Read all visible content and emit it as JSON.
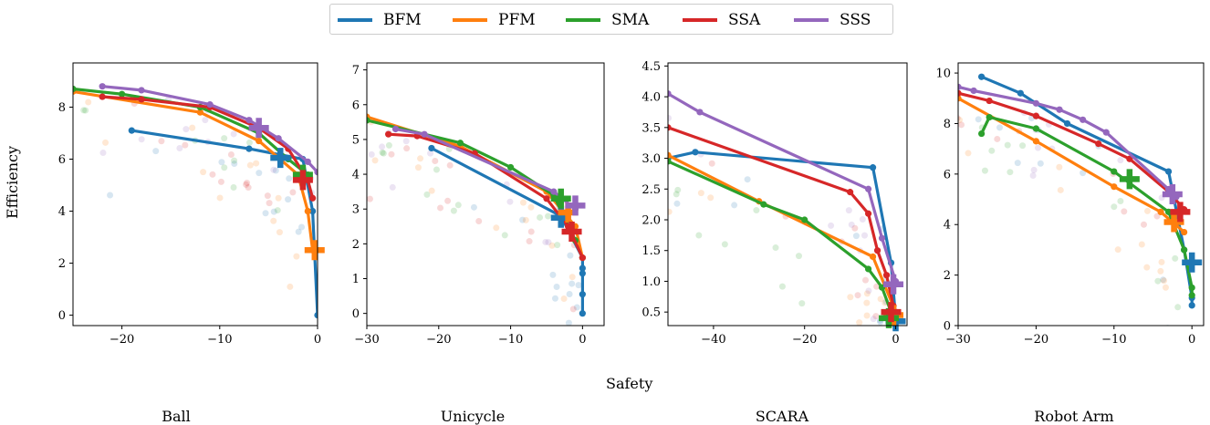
{
  "legend": [
    {
      "name": "BFM",
      "color": "#1f77b4"
    },
    {
      "name": "PFM",
      "color": "#ff7f0e"
    },
    {
      "name": "SMA",
      "color": "#2ca02c"
    },
    {
      "name": "SSA",
      "color": "#d62728"
    },
    {
      "name": "SSS",
      "color": "#9467bd"
    }
  ],
  "ylabel": "Efficiency",
  "xlabel": "Safety",
  "chart_data": [
    {
      "type": "line",
      "title": "Ball",
      "xlim": [
        -25,
        0
      ],
      "ylim": [
        -0.4,
        9.7
      ],
      "xticks": [
        -20,
        -10,
        0
      ],
      "yticks": [
        0,
        2,
        4,
        6,
        8
      ],
      "series": [
        {
          "name": "BFM",
          "x": [
            -19,
            -7,
            -1.5,
            -0.5,
            0
          ],
          "y": [
            7.1,
            6.4,
            6.0,
            4.0,
            0.0
          ],
          "best": [
            -3.8,
            6.05
          ]
        },
        {
          "name": "PFM",
          "x": [
            -25,
            -12,
            -6,
            -2,
            -1,
            -0.5
          ],
          "y": [
            8.6,
            7.8,
            6.7,
            5.4,
            4.0,
            2.5
          ],
          "best": [
            -0.3,
            2.5
          ]
        },
        {
          "name": "SMA",
          "x": [
            -25,
            -20,
            -12,
            -6,
            -3,
            -1
          ],
          "y": [
            8.7,
            8.5,
            8.0,
            7.0,
            6.0,
            5.4
          ],
          "best": [
            -1.5,
            5.4
          ]
        },
        {
          "name": "SSA",
          "x": [
            -22,
            -18,
            -11,
            -6,
            -3,
            -1,
            -0.5
          ],
          "y": [
            8.4,
            8.3,
            8.0,
            7.2,
            6.4,
            5.2,
            4.5
          ],
          "best": [
            -1.5,
            5.2
          ]
        },
        {
          "name": "SSS",
          "x": [
            -22,
            -18,
            -11,
            -7,
            -4,
            -1,
            0
          ],
          "y": [
            8.8,
            8.65,
            8.1,
            7.5,
            6.8,
            5.9,
            5.5
          ],
          "best": [
            -6,
            7.2
          ]
        }
      ]
    },
    {
      "type": "line",
      "title": "Unicycle",
      "xlim": [
        -30,
        3
      ],
      "ylim": [
        -0.35,
        7.2
      ],
      "xticks": [
        -30,
        -20,
        -10,
        0
      ],
      "yticks": [
        0,
        1,
        2,
        3,
        4,
        5,
        6,
        7
      ],
      "series": [
        {
          "name": "BFM",
          "x": [
            -21,
            -3,
            0,
            0,
            0,
            0,
            0
          ],
          "y": [
            4.75,
            2.8,
            1.6,
            1.3,
            1.15,
            0.55,
            0.0
          ],
          "best": [
            -3,
            2.75
          ]
        },
        {
          "name": "PFM",
          "x": [
            -30,
            -17,
            -5,
            -1,
            0
          ],
          "y": [
            5.65,
            4.8,
            3.5,
            2.5,
            1.6
          ],
          "best": [
            -2,
            2.9
          ]
        },
        {
          "name": "SMA",
          "x": [
            -30,
            -17,
            -10,
            -4,
            -1
          ],
          "y": [
            5.55,
            4.9,
            4.2,
            3.4,
            2.1
          ],
          "best": [
            -3,
            3.3
          ]
        },
        {
          "name": "SSA",
          "x": [
            -27,
            -23,
            -15,
            -5,
            -2,
            0
          ],
          "y": [
            5.15,
            5.1,
            4.6,
            3.3,
            2.5,
            1.6
          ],
          "best": [
            -1.5,
            2.35
          ]
        },
        {
          "name": "SSS",
          "x": [
            -26,
            -22,
            -4,
            -1
          ],
          "y": [
            5.3,
            5.15,
            3.5,
            3.0
          ],
          "best": [
            -1,
            3.1
          ]
        }
      ]
    },
    {
      "type": "line",
      "title": "SCARA",
      "xlim": [
        -50,
        2.5
      ],
      "ylim": [
        0.28,
        4.55
      ],
      "xticks": [
        -40,
        -20,
        0
      ],
      "yticks": [
        0.5,
        1.0,
        1.5,
        2.0,
        2.5,
        3.0,
        3.5,
        4.0,
        4.5
      ],
      "series": [
        {
          "name": "BFM",
          "x": [
            -50,
            -44,
            -5,
            -1,
            0
          ],
          "y": [
            3.0,
            3.1,
            2.85,
            1.3,
            0.4
          ],
          "best": [
            0,
            0.35
          ]
        },
        {
          "name": "PFM",
          "x": [
            -50,
            -30,
            -5,
            0
          ],
          "y": [
            3.05,
            2.3,
            1.4,
            0.5
          ],
          "best": [
            -0.5,
            0.45
          ]
        },
        {
          "name": "SMA",
          "x": [
            -50,
            -29,
            -20,
            -6,
            -3,
            -1
          ],
          "y": [
            2.95,
            2.25,
            2.0,
            1.2,
            0.9,
            0.5
          ],
          "best": [
            -1.5,
            0.4
          ]
        },
        {
          "name": "SSA",
          "x": [
            -50,
            -10,
            -6,
            -4,
            -2,
            -0.5
          ],
          "y": [
            3.5,
            2.45,
            2.1,
            1.5,
            1.1,
            0.6
          ],
          "best": [
            -1,
            0.5
          ]
        },
        {
          "name": "SSS",
          "x": [
            -50,
            -43,
            -6,
            -3,
            0
          ],
          "y": [
            4.05,
            3.75,
            2.5,
            1.7,
            1.0
          ],
          "best": [
            -0.5,
            0.95
          ]
        }
      ]
    },
    {
      "type": "line",
      "title": "Robot Arm",
      "xlim": [
        -30,
        1.5
      ],
      "ylim": [
        0,
        10.4
      ],
      "xticks": [
        -30,
        -20,
        -10,
        0
      ],
      "yticks": [
        0,
        2,
        4,
        6,
        8,
        10
      ],
      "series": [
        {
          "name": "BFM",
          "x": [
            -27,
            -22,
            -16,
            -3,
            -1,
            0,
            0
          ],
          "y": [
            9.85,
            9.2,
            8.0,
            6.1,
            3.0,
            1.1,
            0.8
          ],
          "best": [
            0,
            2.5
          ]
        },
        {
          "name": "PFM",
          "x": [
            -30,
            -20,
            -10,
            -4,
            -1
          ],
          "y": [
            9.0,
            7.3,
            5.5,
            4.5,
            3.7
          ],
          "best": [
            -2.3,
            4.1
          ]
        },
        {
          "name": "SMA",
          "x": [
            -27,
            -26,
            -20,
            -10,
            -3,
            -1,
            0,
            0
          ],
          "y": [
            7.6,
            8.25,
            7.8,
            6.1,
            4.5,
            3.0,
            1.5,
            1.2
          ],
          "best": [
            -8,
            5.8
          ]
        },
        {
          "name": "SSA",
          "x": [
            -30,
            -26,
            -20,
            -12,
            -8,
            -3,
            -1
          ],
          "y": [
            9.2,
            8.9,
            8.3,
            7.2,
            6.6,
            5.3,
            4.6
          ],
          "best": [
            -1.5,
            4.5
          ]
        },
        {
          "name": "SSS",
          "x": [
            -30,
            -28,
            -20,
            -17,
            -14,
            -11,
            -3,
            -2
          ],
          "y": [
            9.45,
            9.3,
            8.8,
            8.55,
            8.15,
            7.65,
            5.4,
            5.1
          ],
          "best": [
            -2.5,
            5.2
          ]
        }
      ]
    }
  ]
}
